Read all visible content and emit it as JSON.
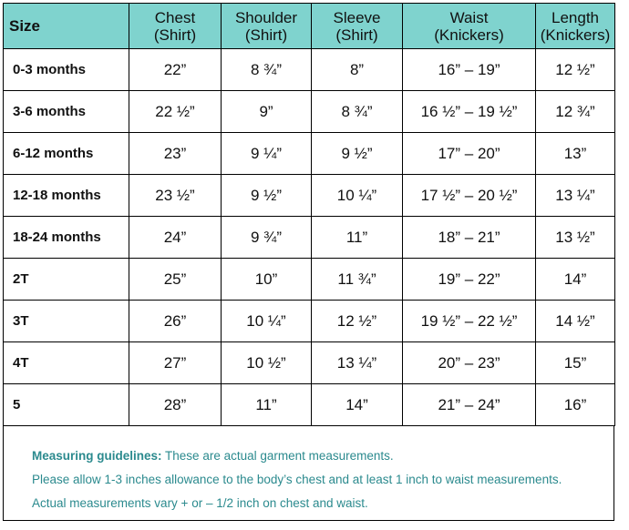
{
  "table": {
    "header": [
      [
        "Size"
      ],
      [
        "Chest",
        "(Shirt)"
      ],
      [
        "Shoulder",
        "(Shirt)"
      ],
      [
        "Sleeve",
        "(Shirt)"
      ],
      [
        "Waist",
        "(Knickers)"
      ],
      [
        "Length",
        "(Knickers)"
      ]
    ],
    "rows": [
      [
        "0-3 months",
        "22”",
        "8 ¾”",
        "8”",
        "16” – 19”",
        "12 ½”"
      ],
      [
        "3-6 months",
        "22 ½”",
        "9”",
        "8 ¾”",
        "16 ½” – 19 ½”",
        "12 ¾”"
      ],
      [
        "6-12 months",
        "23”",
        "9 ¼”",
        "9 ½”",
        "17” – 20”",
        "13”"
      ],
      [
        "12-18 months",
        "23 ½”",
        "9 ½”",
        "10 ¼”",
        "17 ½” – 20 ½”",
        "13 ¼”"
      ],
      [
        "18-24 months",
        "24”",
        "9 ¾”",
        "11”",
        "18” – 21”",
        "13 ½”"
      ],
      [
        "2T",
        "25”",
        "10”",
        "11 ¾”",
        "19” – 22”",
        "14”"
      ],
      [
        "3T",
        "26”",
        "10 ¼”",
        "12 ½”",
        "19 ½” – 22 ½”",
        "14 ½”"
      ],
      [
        "4T",
        "27”",
        "10 ½”",
        "13 ¼”",
        "20” – 23”",
        "15”"
      ],
      [
        "5",
        "28”",
        "11”",
        "14”",
        "21” – 24”",
        "16”"
      ]
    ]
  },
  "footer": {
    "label": "Measuring guidelines:",
    "lines": [
      "These are actual garment measurements.",
      "Please allow 1-3 inches allowance to the body’s chest and at least 1 inch to waist measurements.",
      "Actual measurements vary + or – 1/2 inch on chest and waist."
    ]
  }
}
